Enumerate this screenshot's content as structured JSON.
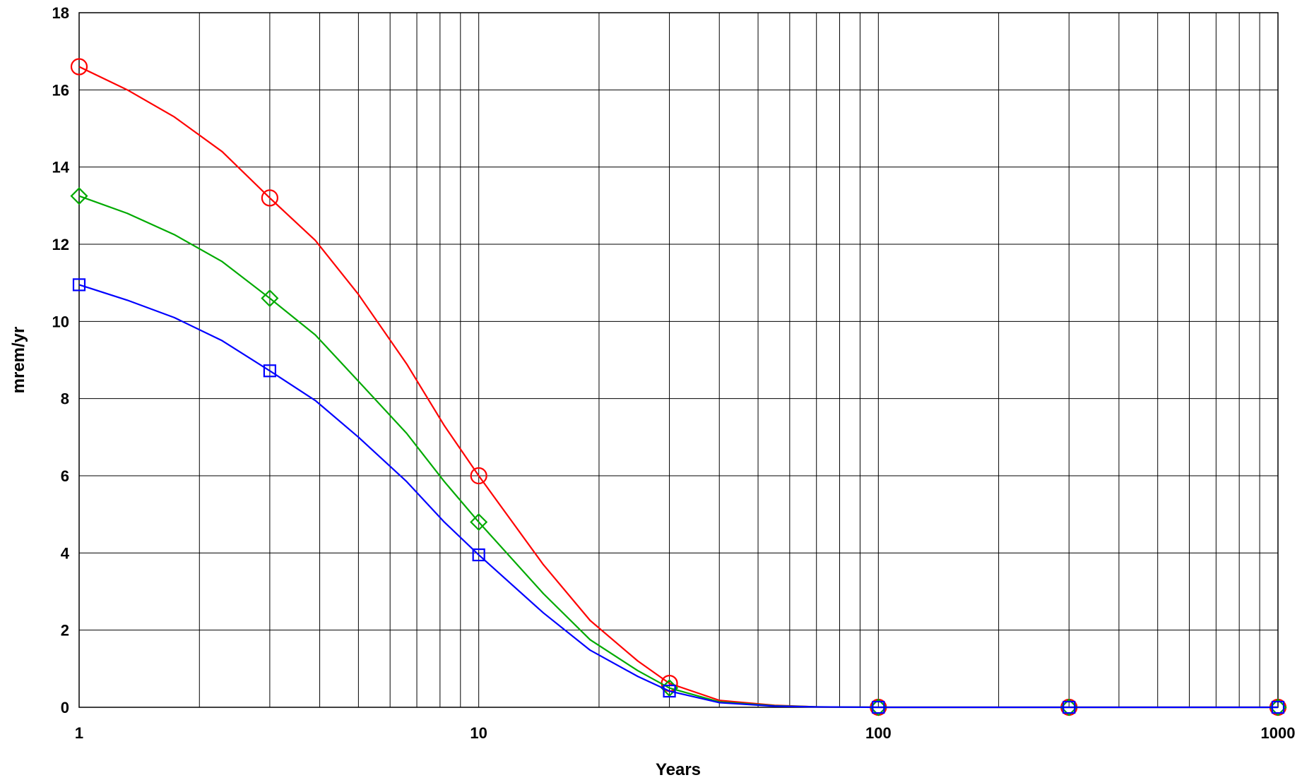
{
  "chart_data": {
    "type": "line",
    "xlabel": "Years",
    "ylabel": "mrem/yr",
    "xscale": "log",
    "xlim": [
      1,
      1000
    ],
    "ylim": [
      0,
      18
    ],
    "x_ticks": [
      "1",
      "10",
      "100",
      "1000"
    ],
    "y_ticks": [
      "0",
      "2",
      "4",
      "6",
      "8",
      "10",
      "12",
      "14",
      "16",
      "18"
    ],
    "grid": true,
    "legend": "none",
    "series": [
      {
        "color": "#ff0000",
        "marker": "circle",
        "points": [
          [
            1,
            16.6
          ],
          [
            1.32,
            16.0
          ],
          [
            1.73,
            15.3
          ],
          [
            2.28,
            14.4
          ],
          [
            3,
            13.2
          ],
          [
            3.9,
            12.1
          ],
          [
            5,
            10.7
          ],
          [
            6.6,
            8.9
          ],
          [
            8.2,
            7.3
          ],
          [
            10,
            6.0
          ],
          [
            14.5,
            3.7
          ],
          [
            19,
            2.25
          ],
          [
            25,
            1.2
          ],
          [
            30,
            0.62
          ],
          [
            40,
            0.18
          ],
          [
            55,
            0.05
          ],
          [
            70,
            0.01
          ],
          [
            100,
            0
          ],
          [
            300,
            0
          ],
          [
            1000,
            0
          ]
        ],
        "marker_points": [
          [
            1,
            16.6
          ],
          [
            3,
            13.2
          ],
          [
            10,
            6.0
          ],
          [
            30,
            0.62
          ],
          [
            100,
            0
          ],
          [
            300,
            0
          ],
          [
            1000,
            0
          ]
        ]
      },
      {
        "color": "#00aa00",
        "marker": "diamond",
        "points": [
          [
            1,
            13.25
          ],
          [
            1.32,
            12.8
          ],
          [
            1.73,
            12.25
          ],
          [
            2.28,
            11.55
          ],
          [
            3,
            10.6
          ],
          [
            3.9,
            9.65
          ],
          [
            5,
            8.45
          ],
          [
            6.6,
            7.1
          ],
          [
            8.2,
            5.85
          ],
          [
            10,
            4.8
          ],
          [
            14.5,
            2.95
          ],
          [
            19,
            1.75
          ],
          [
            25,
            0.95
          ],
          [
            30,
            0.5
          ],
          [
            40,
            0.14
          ],
          [
            55,
            0.04
          ],
          [
            70,
            0.01
          ],
          [
            100,
            0
          ],
          [
            300,
            0
          ],
          [
            1000,
            0
          ]
        ],
        "marker_points": [
          [
            1,
            13.25
          ],
          [
            3,
            10.6
          ],
          [
            10,
            4.8
          ],
          [
            30,
            0.5
          ],
          [
            100,
            0
          ],
          [
            300,
            0
          ],
          [
            1000,
            0
          ]
        ]
      },
      {
        "color": "#0000ff",
        "marker": "square",
        "points": [
          [
            1,
            10.95
          ],
          [
            1.32,
            10.55
          ],
          [
            1.73,
            10.1
          ],
          [
            2.28,
            9.5
          ],
          [
            3,
            8.72
          ],
          [
            3.9,
            7.95
          ],
          [
            5,
            7.0
          ],
          [
            6.6,
            5.85
          ],
          [
            8.2,
            4.8
          ],
          [
            10,
            3.95
          ],
          [
            14.5,
            2.45
          ],
          [
            19,
            1.48
          ],
          [
            25,
            0.8
          ],
          [
            30,
            0.42
          ],
          [
            40,
            0.12
          ],
          [
            55,
            0.03
          ],
          [
            70,
            0.01
          ],
          [
            100,
            0
          ],
          [
            300,
            0
          ],
          [
            1000,
            0
          ]
        ],
        "marker_points": [
          [
            1,
            10.95
          ],
          [
            3,
            8.72
          ],
          [
            10,
            3.95
          ],
          [
            30,
            0.42
          ],
          [
            100,
            0
          ],
          [
            300,
            0
          ],
          [
            1000,
            0
          ]
        ]
      }
    ]
  }
}
